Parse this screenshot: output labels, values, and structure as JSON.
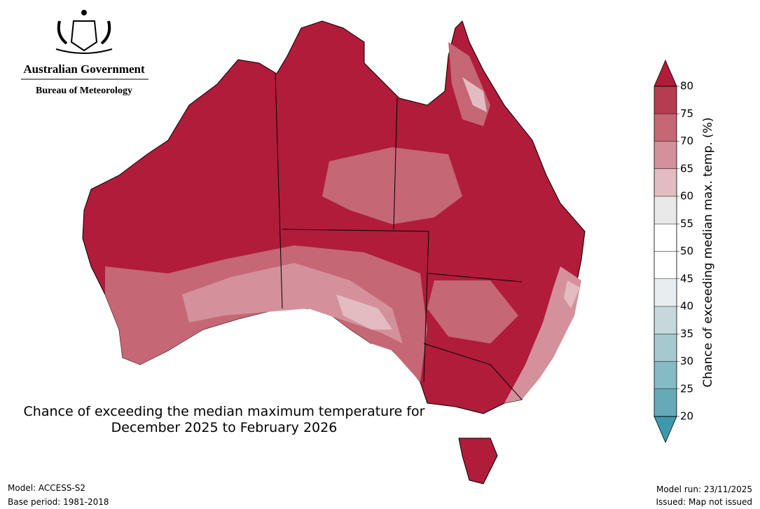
{
  "header": {
    "line1": "Australian Government",
    "line2": "Bureau of Meteorology"
  },
  "map": {
    "title": [
      "Chance of exceeding the median maximum temperature for",
      "December 2025 to February 2026"
    ]
  },
  "colorbar": {
    "label": "Chance of exceeding median max. temp. (%)",
    "ticks": [
      20,
      25,
      30,
      35,
      40,
      45,
      50,
      55,
      60,
      65,
      70,
      75,
      80
    ],
    "colors": [
      "#66aab9",
      "#86bac4",
      "#a6c9cf",
      "#c7d8db",
      "#e8eef0",
      "#ffffff",
      "#ffffff",
      "#e9e9e9",
      "#e3bcc1",
      "#d4919b",
      "#c56775",
      "#b63c51"
    ],
    "under_color": "#3d9aae",
    "over_color": "#b01c3a"
  },
  "footer": {
    "model": "Model: ACCESS-S2",
    "base_period": "Base period: 1981-2018",
    "model_run": "Model run: 23/11/2025",
    "issued": "Issued: Map not issued"
  }
}
